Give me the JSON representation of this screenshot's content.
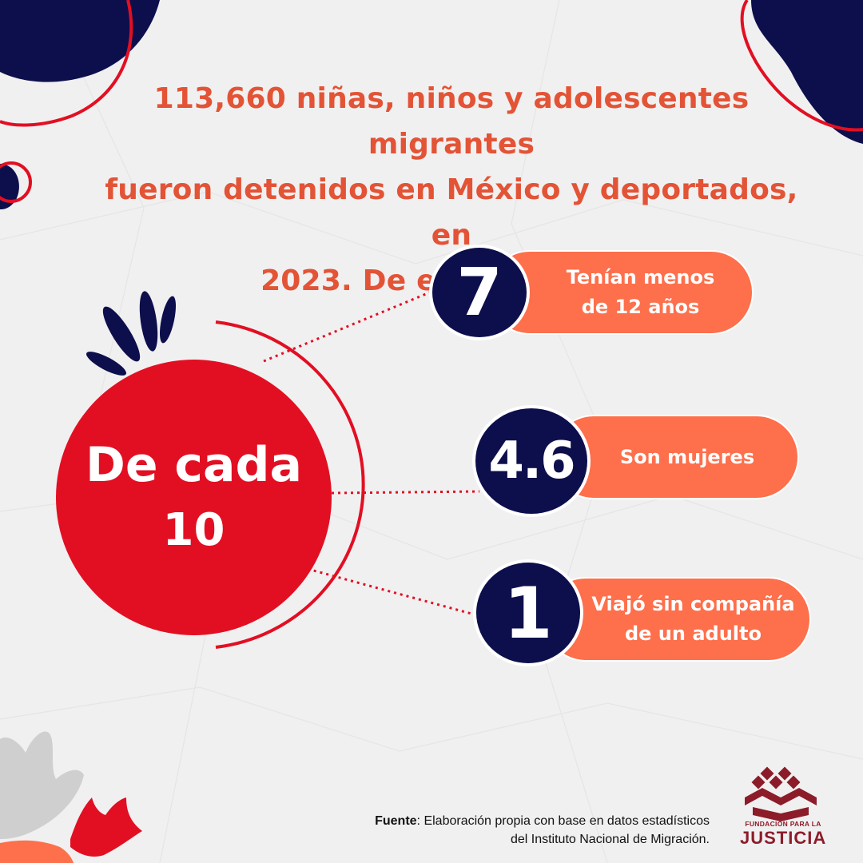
{
  "headline": {
    "line1": "113,660 niñas, niños y adolescentes migrantes",
    "line2": "fueron detenidos en México y deportados, en",
    "line3": "2023. De ellas y ellos..."
  },
  "center": {
    "line1": "De cada",
    "line2": "10"
  },
  "stats": [
    {
      "number": "7",
      "label_line1": "Tenían menos",
      "label_line2": "de 12 años"
    },
    {
      "number": "4.6",
      "label_line1": "Son mujeres",
      "label_line2": ""
    },
    {
      "number": "1",
      "label_line1": "Viajó sin compañía",
      "label_line2": "de un adulto"
    }
  ],
  "source": {
    "label": "Fuente",
    "line1": ": Elaboración propia con base en datos estadísticos",
    "line2": "del Instituto Nacional de Migración."
  },
  "logo": {
    "small": "FUNDACIÓN PARA LA",
    "big": "JUSTICIA"
  },
  "colors": {
    "headline": "#e35336",
    "center_circle": "#e20f23",
    "pill": "#fe6f4b",
    "number_circle": "#0d0f4c",
    "accent_navy": "#0d0f4c",
    "logo": "#8c1c2a"
  },
  "icons": [
    "fundacion-justicia-logo-icon"
  ]
}
